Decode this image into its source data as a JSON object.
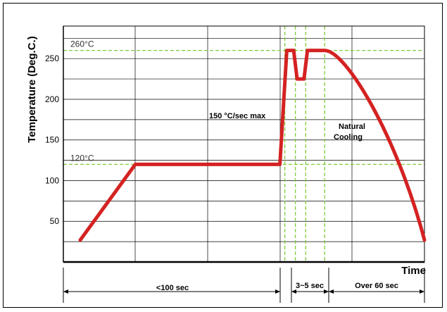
{
  "chart_data": {
    "type": "line",
    "ylabel": "Temperature (Deg.C.)",
    "xlabel": "Time",
    "yticks": [
      50,
      100,
      150,
      200,
      250
    ],
    "ylim": [
      0,
      290
    ],
    "grid": true,
    "line_color": "#d42222",
    "ref_color": "#7fcc3a",
    "reference_lines": [
      {
        "label": "260°C",
        "value": 260
      },
      {
        "label": "120°C",
        "value": 120
      }
    ],
    "series": [
      {
        "points": [
          [
            0,
            27
          ],
          [
            16,
            120
          ],
          [
            58,
            120
          ],
          [
            60,
            260
          ],
          [
            62,
            260
          ],
          [
            63,
            225
          ],
          [
            65,
            225
          ],
          [
            66,
            260
          ],
          [
            71,
            260
          ],
          [
            100,
            27
          ]
        ]
      }
    ],
    "annotations": [
      {
        "text": "150 °C/sec max"
      },
      {
        "text": "Natural Cooling"
      }
    ],
    "durations": [
      {
        "label": "<100 sec"
      },
      {
        "label": "3~5 sec"
      },
      {
        "label": "Over 60 sec"
      }
    ]
  }
}
